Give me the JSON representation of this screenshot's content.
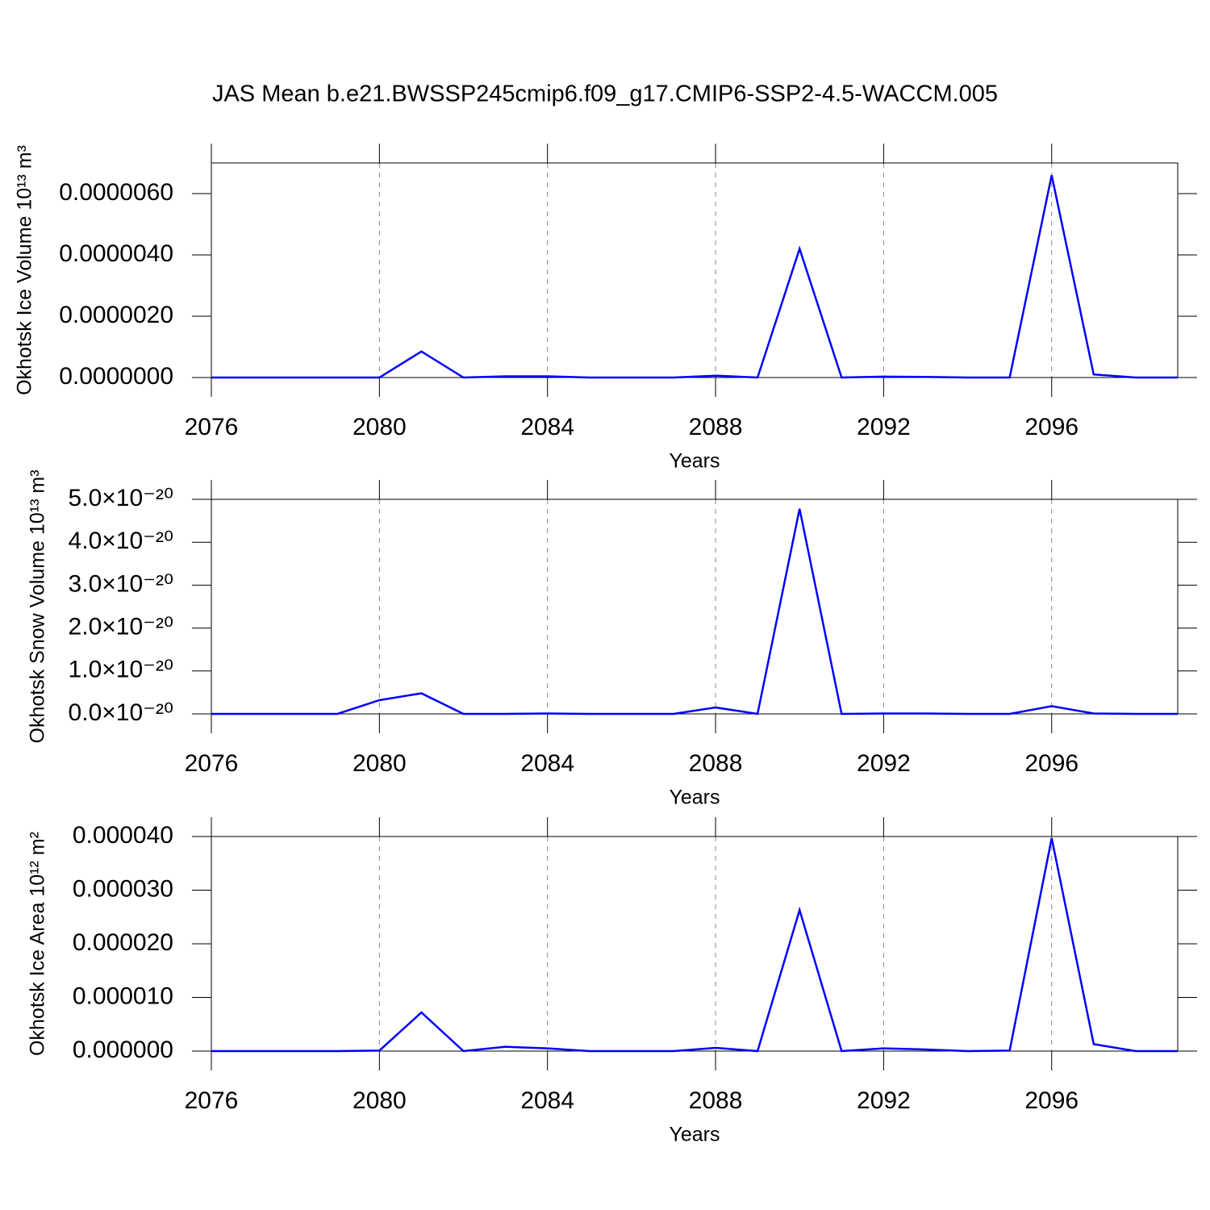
{
  "chart_data": [
    {
      "type": "line",
      "title": "JAS Mean b.e21.BWSSP245cmip6.f09_g17.CMIP6-SSP2-4.5-WACCM.005",
      "x_label": "Years",
      "y_label": "Okhotsk Ice Volume 10¹³ m³",
      "x": [
        2076,
        2077,
        2078,
        2079,
        2080,
        2081,
        2082,
        2083,
        2084,
        2085,
        2086,
        2087,
        2088,
        2089,
        2090,
        2091,
        2092,
        2093,
        2094,
        2095,
        2096,
        2097,
        2098,
        2099
      ],
      "series": [
        {
          "color": "#0000ff",
          "values": [
            0,
            0,
            0,
            0,
            0,
            8.5e-07,
            0,
            4e-08,
            4e-08,
            0,
            0,
            0,
            6e-08,
            0,
            4.2e-06,
            0,
            3e-08,
            2e-08,
            0,
            0,
            6.6e-06,
            1e-07,
            0,
            0
          ]
        }
      ],
      "xlim": [
        2076,
        2099
      ],
      "xticks": [
        2076,
        2080,
        2084,
        2088,
        2092,
        2096
      ],
      "ylim": [
        0,
        7e-06
      ],
      "yticks": [
        {
          "value": 0,
          "label": "0.0000000"
        },
        {
          "value": 2e-06,
          "label": "0.0000020"
        },
        {
          "value": 4e-06,
          "label": "0.0000040"
        },
        {
          "value": 6e-06,
          "label": "0.0000060"
        }
      ],
      "grid": true
    },
    {
      "type": "line",
      "x_label": "Years",
      "y_label": "Okhotsk Snow Volume 10¹³ m³",
      "x": [
        2076,
        2077,
        2078,
        2079,
        2080,
        2081,
        2082,
        2083,
        2084,
        2085,
        2086,
        2087,
        2088,
        2089,
        2090,
        2091,
        2092,
        2093,
        2094,
        2095,
        2096,
        2097,
        2098,
        2099
      ],
      "series": [
        {
          "color": "#0000ff",
          "values": [
            0,
            0,
            0,
            0,
            3.2e-21,
            4.8e-21,
            0,
            0,
            1e-22,
            0,
            0,
            0,
            1.5e-21,
            0,
            4.78e-20,
            0,
            1e-22,
            1e-22,
            0,
            0,
            1.8e-21,
            1e-22,
            0,
            0
          ]
        }
      ],
      "xlim": [
        2076,
        2099
      ],
      "xticks": [
        2076,
        2080,
        2084,
        2088,
        2092,
        2096
      ],
      "ylim": [
        0,
        5e-20
      ],
      "yticks": [
        {
          "value": 0,
          "label": "0.0×10⁻²⁰"
        },
        {
          "value": 1e-20,
          "label": "1.0×10⁻²⁰"
        },
        {
          "value": 2e-20,
          "label": "2.0×10⁻²⁰"
        },
        {
          "value": 3e-20,
          "label": "3.0×10⁻²⁰"
        },
        {
          "value": 4e-20,
          "label": "4.0×10⁻²⁰"
        },
        {
          "value": 5e-20,
          "label": "5.0×10⁻²⁰"
        }
      ],
      "grid": true
    },
    {
      "type": "line",
      "x_label": "Years",
      "y_label": "Okhotsk Ice Area 10¹² m²",
      "x": [
        2076,
        2077,
        2078,
        2079,
        2080,
        2081,
        2082,
        2083,
        2084,
        2085,
        2086,
        2087,
        2088,
        2089,
        2090,
        2091,
        2092,
        2093,
        2094,
        2095,
        2096,
        2097,
        2098,
        2099
      ],
      "series": [
        {
          "color": "#0000ff",
          "values": [
            0,
            0,
            0,
            0,
            1e-07,
            7.2e-06,
            0,
            8e-07,
            5e-07,
            0,
            0,
            0,
            6e-07,
            0,
            2.63e-05,
            0,
            5e-07,
            3e-07,
            0,
            1e-07,
            3.97e-05,
            1.3e-06,
            0,
            0
          ]
        }
      ],
      "xlim": [
        2076,
        2099
      ],
      "xticks": [
        2076,
        2080,
        2084,
        2088,
        2092,
        2096
      ],
      "ylim": [
        0,
        4e-05
      ],
      "yticks": [
        {
          "value": 0,
          "label": "0.000000"
        },
        {
          "value": 1e-05,
          "label": "0.000010"
        },
        {
          "value": 2e-05,
          "label": "0.000020"
        },
        {
          "value": 3e-05,
          "label": "0.000030"
        },
        {
          "value": 4e-05,
          "label": "0.000040"
        }
      ],
      "grid": true
    }
  ]
}
